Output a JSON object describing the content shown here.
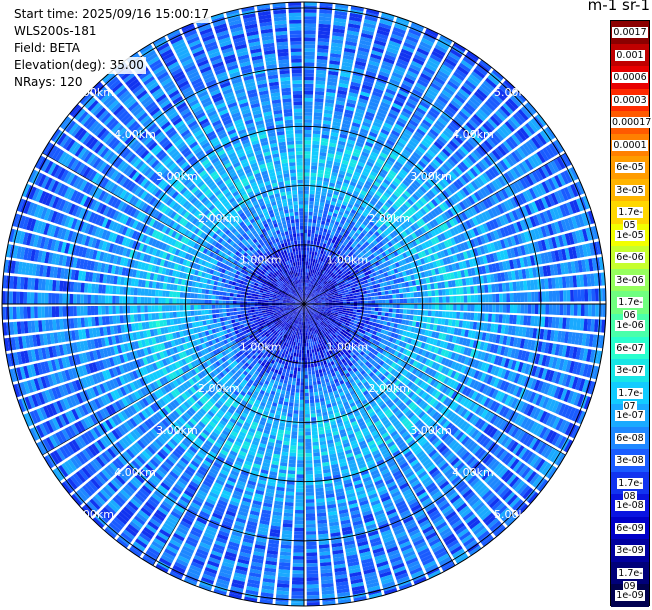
{
  "header": {
    "start_time": "Start time: 2025/09/16 15:00:17",
    "instrument": "WLS200s-181",
    "field": "Field: BETA",
    "elevation": "Elevation(deg): 35.00",
    "nrays": "NRays: 120"
  },
  "colorbar": {
    "title": "m-1 sr-1",
    "ticks": [
      "0.0017",
      "0.001",
      "0.0006",
      "0.0003",
      "0.00017",
      "0.0001",
      "6e-05",
      "3e-05",
      "1.7e-05",
      "1e-05",
      "6e-06",
      "3e-06",
      "1.7e-06",
      "1e-06",
      "6e-07",
      "3e-07",
      "1.7e-07",
      "1e-07",
      "6e-08",
      "3e-08",
      "1.7e-08",
      "1e-08",
      "6e-09",
      "3e-09",
      "1.7e-09",
      "1e-09"
    ],
    "colors": [
      "#8b0000",
      "#c00000",
      "#e80000",
      "#ff2a00",
      "#ff5a00",
      "#ff8000",
      "#ff9c00",
      "#ffb400",
      "#ffd700",
      "#f2ff00",
      "#c6ff2e",
      "#96ff5e",
      "#70ff80",
      "#4affaa",
      "#2affce",
      "#18e6e6",
      "#12ccff",
      "#1aaaff",
      "#1e88ff",
      "#1a5cff",
      "#1234f0",
      "#0a14e0",
      "#0000c8",
      "#00009e",
      "#00007a",
      "#000050"
    ]
  },
  "chart_data": {
    "type": "heatmap",
    "projection": "polar PPI",
    "field": "BETA",
    "units": "m-1 sr-1",
    "elevation_deg": 35.0,
    "nrays": 120,
    "range_rings_km": [
      1.0,
      2.0,
      3.0,
      4.0,
      5.0
    ],
    "ring_labels": [
      "1.00km",
      "2.00km",
      "3.00km",
      "4.00km",
      "5.00km"
    ],
    "max_range_km": 5.1,
    "color_scale": "log",
    "value_range": [
      1e-09,
      0.0017
    ],
    "radial_profile": [
      {
        "range_km": 0.0,
        "beta": 1e-08
      },
      {
        "range_km": 0.5,
        "beta": 8e-09
      },
      {
        "range_km": 1.0,
        "beta": 1.7e-08
      },
      {
        "range_km": 1.5,
        "beta": 6e-08
      },
      {
        "range_km": 2.0,
        "beta": 1.2e-07
      },
      {
        "range_km": 2.5,
        "beta": 1.5e-07
      },
      {
        "range_km": 3.0,
        "beta": 9e-08
      },
      {
        "range_km": 3.5,
        "beta": 6e-08
      },
      {
        "range_km": 4.0,
        "beta": 5e-08
      },
      {
        "range_km": 4.5,
        "beta": 4.5e-08
      },
      {
        "range_km": 5.0,
        "beta": 4e-08
      }
    ]
  }
}
